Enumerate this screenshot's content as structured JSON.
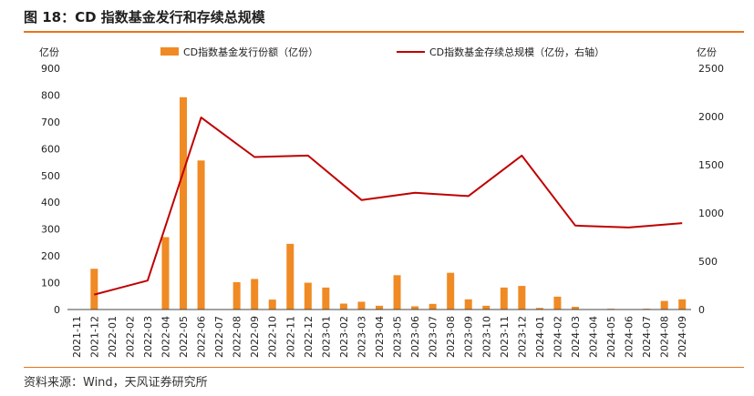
{
  "header": {
    "title": "图 18：CD 指数基金发行和存续总规模"
  },
  "footer": {
    "source": "资料来源：Wind，天风证券研究所"
  },
  "colors": {
    "bar": "#f08a24",
    "line": "#c00000",
    "rule": "#e8741c"
  },
  "chart_data": {
    "type": "bar+line",
    "title": "CD 指数基金发行和存续总规模",
    "y_left_label": "亿份",
    "y_right_label": "亿份",
    "y_left_lim": [
      0,
      900
    ],
    "y_left_ticks": [
      "0",
      "100",
      "200",
      "300",
      "400",
      "500",
      "600",
      "700",
      "800",
      "900"
    ],
    "y_right_lim": [
      0,
      2500
    ],
    "y_right_ticks": [
      "0",
      "500",
      "1000",
      "1500",
      "2000",
      "2500"
    ],
    "legend_position": "top",
    "categories": [
      "2021-11",
      "2021-12",
      "2022-01",
      "2022-02",
      "2022-03",
      "2022-04",
      "2022-05",
      "2022-06",
      "2022-07",
      "2022-08",
      "2022-09",
      "2022-10",
      "2022-11",
      "2022-12",
      "2023-01",
      "2023-02",
      "2023-03",
      "2023-04",
      "2023-05",
      "2023-06",
      "2023-07",
      "2023-08",
      "2023-09",
      "2023-10",
      "2023-11",
      "2023-12",
      "2024-01",
      "2024-02",
      "2024-03",
      "2024-04",
      "2024-05",
      "2024-06",
      "2024-07",
      "2024-08",
      "2024-09"
    ],
    "series": [
      {
        "name": "CD指数基金发行份额（亿份）",
        "kind": "bar",
        "axis": "left",
        "values": [
          0,
          152,
          0,
          0,
          0,
          270,
          792,
          556,
          0,
          102,
          114,
          37,
          245,
          100,
          82,
          22,
          29,
          14,
          128,
          12,
          21,
          137,
          38,
          14,
          82,
          88,
          6,
          48,
          10,
          0,
          3,
          0,
          3,
          32,
          38
        ]
      },
      {
        "name": "CD指数基金存续总规模（亿份，右轴）",
        "kind": "line",
        "axis": "right",
        "values": [
          null,
          155,
          null,
          null,
          300,
          null,
          null,
          1990,
          null,
          null,
          1580,
          null,
          null,
          1595,
          null,
          null,
          1135,
          null,
          null,
          1210,
          null,
          null,
          1175,
          null,
          null,
          1595,
          null,
          null,
          870,
          null,
          null,
          850,
          null,
          null,
          895
        ]
      }
    ]
  }
}
